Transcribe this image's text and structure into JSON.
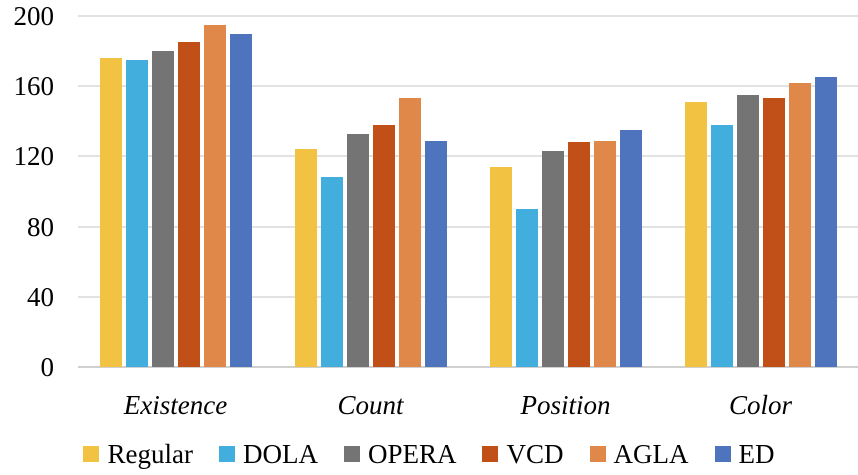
{
  "chart_data": {
    "type": "bar",
    "categories": [
      "Existence",
      "Count",
      "Position",
      "Color"
    ],
    "series": [
      {
        "name": "Regular",
        "color": "#F2C342",
        "values": [
          176,
          124,
          114,
          151
        ]
      },
      {
        "name": "DOLA",
        "color": "#42AEDE",
        "values": [
          175,
          108,
          90,
          138
        ]
      },
      {
        "name": "OPERA",
        "color": "#747474",
        "values": [
          180,
          133,
          123,
          155
        ]
      },
      {
        "name": "VCD",
        "color": "#C05018",
        "values": [
          185,
          138,
          128,
          153
        ]
      },
      {
        "name": "AGLA",
        "color": "#E0874A",
        "values": [
          195,
          153,
          129,
          162
        ]
      },
      {
        "name": "ED",
        "color": "#4E74BE",
        "values": [
          190,
          129,
          135,
          165
        ]
      }
    ],
    "ylim": [
      0,
      200
    ],
    "yticks": [
      0,
      40,
      80,
      120,
      160,
      200
    ],
    "xlabel": "",
    "ylabel": "",
    "grid": true,
    "legend_position": "bottom",
    "style": {
      "gridline_color": "#E2E2E2",
      "axis_line_color": "#D0D0D0",
      "text_color": "#000000",
      "background_color": "#FFFFFF"
    }
  }
}
